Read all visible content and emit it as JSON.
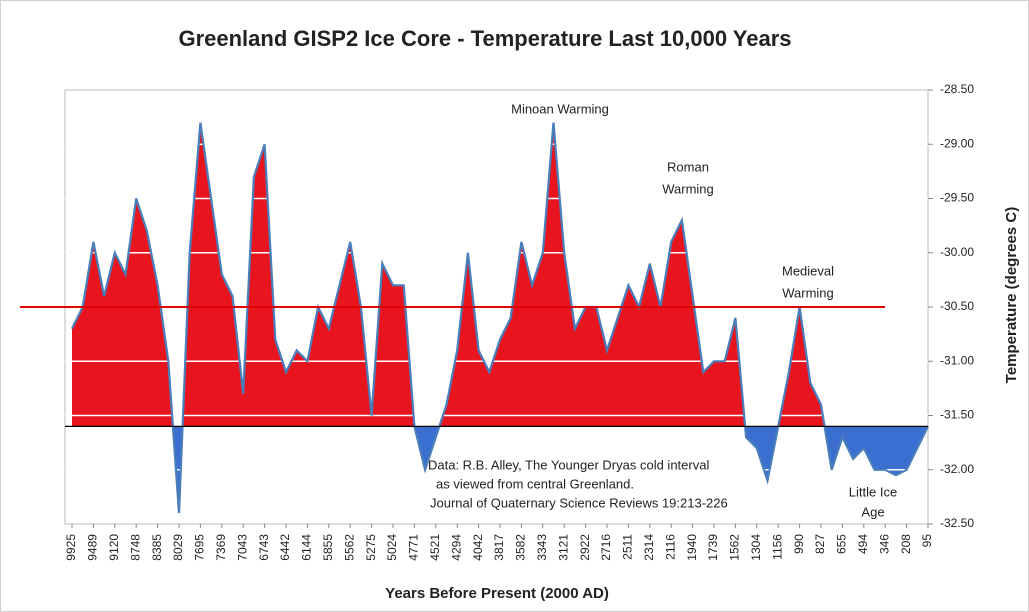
{
  "chart_data": {
    "type": "area",
    "title": "Greenland GISP2 Ice Core - Temperature  Last 10,000 Years",
    "x_label": "Years Before Present (2000 AD)",
    "y_label": "Temperature (degrees C)",
    "categories": [
      "9925",
      null,
      "9489",
      null,
      "9120",
      null,
      "8748",
      null,
      "8385",
      null,
      "8029",
      null,
      "7695",
      null,
      "7369",
      null,
      "7043",
      null,
      "6743",
      null,
      "6442",
      null,
      "6144",
      null,
      "5855",
      null,
      "5562",
      null,
      "5275",
      null,
      "5024",
      null,
      "4771",
      null,
      "4521",
      null,
      "4294",
      null,
      "4042",
      null,
      "3817",
      null,
      "3582",
      null,
      "3343",
      null,
      "3121",
      null,
      "2922",
      null,
      "2716",
      null,
      "2511",
      null,
      "2314",
      null,
      "2116",
      null,
      "1940",
      null,
      "1739",
      null,
      "1562",
      null,
      "1304",
      null,
      "1156",
      null,
      "990",
      null,
      "827",
      null,
      "655",
      null,
      "494",
      null,
      "346",
      null,
      "208",
      null,
      "95"
    ],
    "values": [
      -30.7,
      -30.5,
      -29.9,
      -30.4,
      -30.0,
      -30.2,
      -29.5,
      -29.8,
      -30.3,
      -31.0,
      -32.4,
      -30.0,
      -28.8,
      -29.5,
      -30.2,
      -30.4,
      -31.3,
      -29.3,
      -29.0,
      -30.8,
      -31.1,
      -30.9,
      -31.0,
      -30.5,
      -30.7,
      -30.3,
      -29.9,
      -30.5,
      -31.5,
      -30.1,
      -30.3,
      -30.3,
      -31.6,
      -32.0,
      -31.7,
      -31.4,
      -30.9,
      -30.0,
      -30.9,
      -31.1,
      -30.8,
      -30.6,
      -29.9,
      -30.3,
      -30.0,
      -28.8,
      -30.0,
      -30.7,
      -30.5,
      -30.5,
      -30.9,
      -30.6,
      -30.3,
      -30.5,
      -30.1,
      -30.5,
      -29.9,
      -29.7,
      -30.4,
      -31.1,
      -31.0,
      -31.0,
      -30.6,
      -31.7,
      -31.8,
      -32.1,
      -31.6,
      -31.1,
      -30.5,
      -31.2,
      -31.4,
      -32.0,
      -31.7,
      -31.9,
      -31.8,
      -32.0,
      -32.0,
      -32.05,
      -32.0,
      -31.8,
      -31.6
    ],
    "line_color": "#4a7ebb",
    "fill_above": "#e8141e",
    "fill_below": "#3a6fd0",
    "baseline": -31.6,
    "reference_line": {
      "value": -30.5,
      "color": "#e00000"
    },
    "ylim": [
      -32.5,
      -28.5
    ],
    "yticks": [
      {
        "value": -32.5,
        "label": "-32.50"
      },
      {
        "value": -32.0,
        "label": "-32.00"
      },
      {
        "value": -31.5,
        "label": "-31.50"
      },
      {
        "value": -31.0,
        "label": "-31.00"
      },
      {
        "value": -30.5,
        "label": "-30.50"
      },
      {
        "value": -30.0,
        "label": "-30.00"
      },
      {
        "value": -29.5,
        "label": "-29.50"
      },
      {
        "value": -29.0,
        "label": "-29.00"
      },
      {
        "value": -28.5,
        "label": "-28.50"
      }
    ],
    "grid": true,
    "grid_color": "#ffffff",
    "annotations": [
      {
        "lines": [
          "Minoan Warming"
        ]
      },
      {
        "lines": [
          "Roman",
          "Warming"
        ]
      },
      {
        "lines": [
          "Medieval",
          "Warming"
        ]
      },
      {
        "lines": [
          "Little Ice",
          "Age"
        ]
      },
      {
        "lines": [
          "Data: R.B. Alley,  The Younger Dryas cold interval",
          "as viewed from central Greenland.",
          "Journal of Quaternary  Science Reviews 19:213-226"
        ]
      }
    ]
  }
}
